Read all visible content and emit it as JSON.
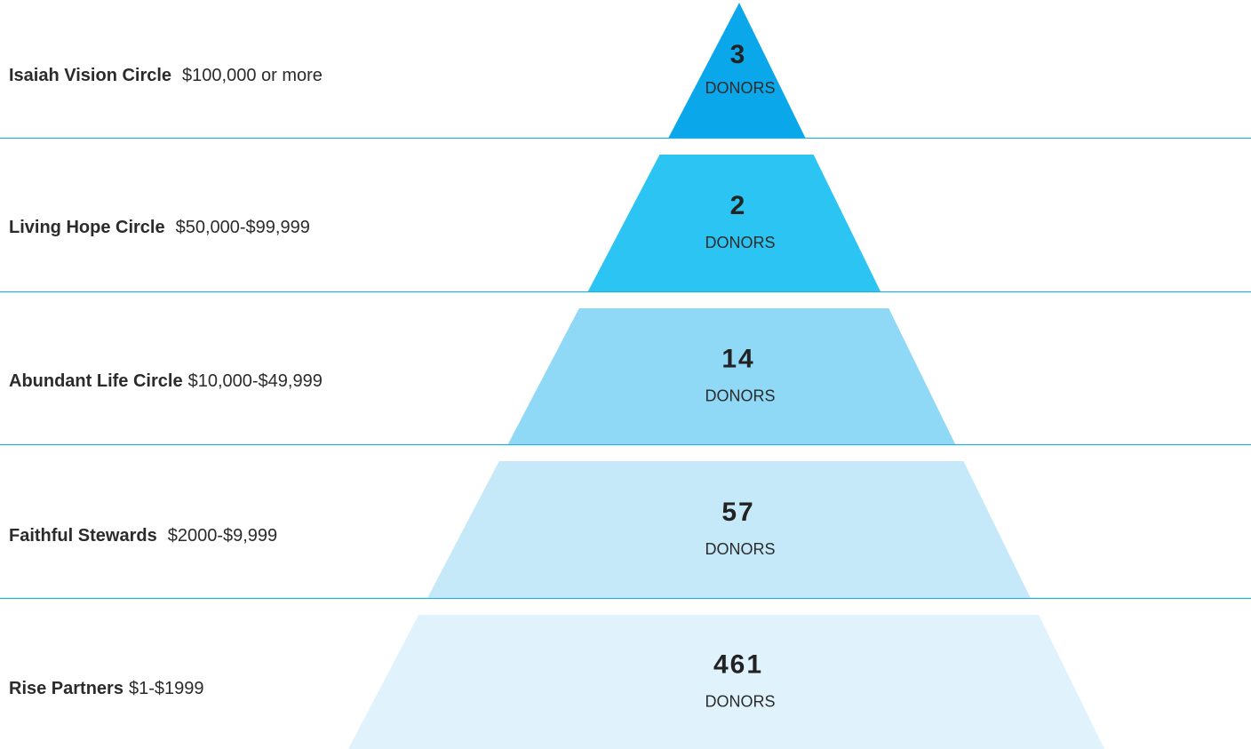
{
  "tiers": [
    {
      "name": "Isaiah Vision Circle",
      "range": "$100,000 or more",
      "count": 3,
      "unit": "DONORS",
      "color": "#0aa8ea"
    },
    {
      "name": "Living Hope Circle",
      "range": "$50,000-$99,999",
      "count": 2,
      "unit": "DONORS",
      "color": "#2cc4f2"
    },
    {
      "name": "Abundant Life Circle",
      "range": "$10,000-$49,999",
      "count": 14,
      "unit": "DONORS",
      "color": "#8fd8f6"
    },
    {
      "name": "Faithful Stewards",
      "range": "$2000-$9,999",
      "count": 57,
      "unit": "DONORS",
      "color": "#c6e9f9"
    },
    {
      "name": "Rise Partners",
      "range": "$1-$1999",
      "count": 461,
      "unit": "DONORS",
      "color": "#e0f3fc"
    }
  ]
}
